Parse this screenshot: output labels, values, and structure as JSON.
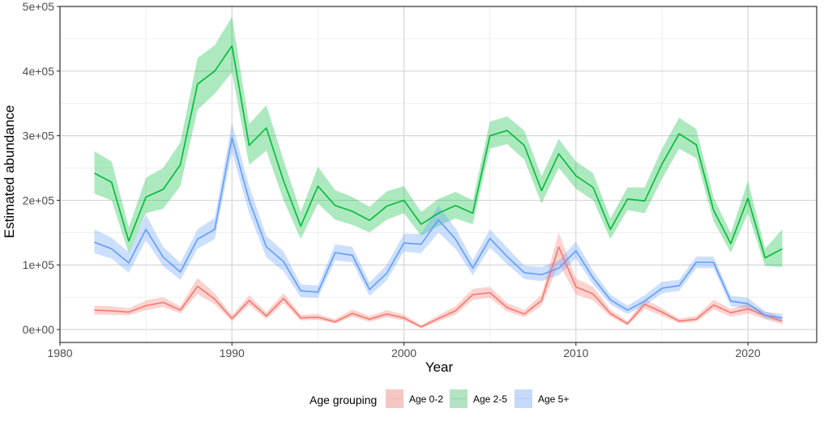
{
  "chart_data": {
    "type": "line",
    "xlabel": "Year",
    "ylabel": "Estimated abundance",
    "xlim": [
      1980,
      2024
    ],
    "ylim": [
      -20000,
      500000
    ],
    "x_ticks": [
      1980,
      1990,
      2000,
      2010,
      2020
    ],
    "x_tick_labels": [
      "1980",
      "1990",
      "2000",
      "2010",
      "2020"
    ],
    "y_ticks": [
      0,
      100000,
      200000,
      300000,
      400000,
      500000
    ],
    "y_tick_labels": [
      "0e+00",
      "1e+05",
      "2e+05",
      "3e+05",
      "4e+05",
      "5e+05"
    ],
    "grid": true,
    "legend_position": "bottom",
    "legend_title": "Age grouping",
    "x": [
      1982,
      1983,
      1984,
      1985,
      1986,
      1987,
      1988,
      1989,
      1990,
      1991,
      1992,
      1993,
      1994,
      1995,
      1996,
      1997,
      1998,
      1999,
      2000,
      2001,
      2002,
      2003,
      2004,
      2005,
      2006,
      2007,
      2008,
      2009,
      2010,
      2011,
      2012,
      2013,
      2014,
      2015,
      2016,
      2017,
      2018,
      2019,
      2020,
      2021,
      2022
    ],
    "series": [
      {
        "name": "Age 0-2",
        "color": "#F8766D",
        "fill": "#F4C7C3",
        "values": [
          30000,
          29000,
          27000,
          37000,
          42000,
          30000,
          67000,
          47000,
          17000,
          45000,
          21000,
          48000,
          18000,
          19000,
          12000,
          25000,
          16000,
          24000,
          18000,
          4000,
          17000,
          29000,
          54000,
          57000,
          34000,
          24000,
          45000,
          128000,
          66000,
          55000,
          25000,
          9000,
          39000,
          27000,
          13000,
          16000,
          38000,
          26000,
          32000,
          22000,
          13000
        ],
        "lower": [
          23000,
          23000,
          22000,
          30000,
          35000,
          25000,
          55000,
          39000,
          13000,
          38000,
          16000,
          41000,
          14000,
          15000,
          9000,
          20000,
          12000,
          19000,
          14000,
          2000,
          13000,
          23000,
          46000,
          49000,
          28000,
          19000,
          37000,
          102000,
          54000,
          45000,
          20000,
          6000,
          32000,
          21000,
          10000,
          12000,
          31000,
          20000,
          25000,
          16000,
          8000
        ],
        "upper": [
          37000,
          36000,
          33000,
          45000,
          50000,
          36000,
          80000,
          56000,
          22000,
          53000,
          27000,
          56000,
          23000,
          24000,
          16000,
          31000,
          21000,
          30000,
          23000,
          7000,
          22000,
          36000,
          63000,
          66000,
          41000,
          30000,
          54000,
          150000,
          79000,
          66000,
          31000,
          13000,
          47000,
          33000,
          17000,
          21000,
          46000,
          32000,
          40000,
          28000,
          19000
        ]
      },
      {
        "name": "Age 2-5",
        "color": "#00BA38",
        "fill": "#B3E3C2",
        "values": [
          242000,
          228000,
          137000,
          205000,
          217000,
          255000,
          380000,
          400000,
          439000,
          285000,
          312000,
          230000,
          160000,
          222000,
          192000,
          183000,
          169000,
          191000,
          200000,
          163000,
          180000,
          192000,
          180000,
          300000,
          308000,
          285000,
          215000,
          272000,
          238000,
          220000,
          155000,
          202000,
          199000,
          256000,
          303000,
          286000,
          185000,
          133000,
          203000,
          111000,
          125000
        ],
        "lower": [
          210000,
          200000,
          118000,
          180000,
          187000,
          222000,
          340000,
          365000,
          398000,
          255000,
          277000,
          200000,
          140000,
          195000,
          170000,
          162000,
          150000,
          170000,
          180000,
          145000,
          160000,
          172000,
          163000,
          280000,
          287000,
          263000,
          195000,
          250000,
          218000,
          200000,
          140000,
          185000,
          180000,
          233000,
          280000,
          265000,
          168000,
          119000,
          180000,
          98000,
          97000
        ],
        "upper": [
          276000,
          260000,
          158000,
          235000,
          250000,
          290000,
          420000,
          440000,
          484000,
          318000,
          347000,
          262000,
          182000,
          252000,
          216000,
          205000,
          190000,
          214000,
          222000,
          182000,
          202000,
          213000,
          200000,
          322000,
          330000,
          308000,
          237000,
          295000,
          260000,
          242000,
          172000,
          220000,
          220000,
          280000,
          328000,
          310000,
          205000,
          149000,
          230000,
          125000,
          155000
        ]
      },
      {
        "name": "Age 5+",
        "color": "#619CFF",
        "fill": "#C7D9FB",
        "values": [
          135000,
          125000,
          103000,
          155000,
          112000,
          89000,
          140000,
          155000,
          297000,
          200000,
          128000,
          105000,
          60000,
          58000,
          119000,
          115000,
          62000,
          87000,
          134000,
          132000,
          170000,
          140000,
          95000,
          141000,
          113000,
          88000,
          85000,
          95000,
          122000,
          80000,
          46000,
          30000,
          44000,
          64000,
          68000,
          104000,
          104000,
          44000,
          40000,
          22000,
          18000
        ],
        "lower": [
          118000,
          110000,
          88000,
          138000,
          98000,
          77000,
          125000,
          140000,
          275000,
          180000,
          112000,
          90000,
          50000,
          49000,
          107000,
          104000,
          52000,
          76000,
          121000,
          118000,
          150000,
          125000,
          84000,
          127000,
          101000,
          78000,
          75000,
          84000,
          110000,
          70000,
          39000,
          24000,
          37000,
          56000,
          60000,
          95000,
          95000,
          36000,
          33000,
          17000,
          12000
        ],
        "upper": [
          155000,
          142000,
          120000,
          178000,
          128000,
          103000,
          155000,
          173000,
          320000,
          222000,
          145000,
          121000,
          70000,
          68000,
          132000,
          128000,
          73000,
          100000,
          148000,
          148000,
          192000,
          157000,
          107000,
          155000,
          127000,
          99000,
          97000,
          107000,
          136000,
          91000,
          54000,
          37000,
          53000,
          74000,
          77000,
          113000,
          113000,
          52000,
          49000,
          28000,
          24000
        ]
      }
    ]
  }
}
